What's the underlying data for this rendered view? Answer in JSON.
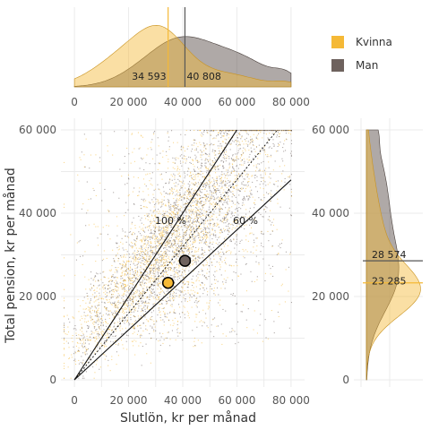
{
  "chart_data": {
    "type": "scatter",
    "xlabel": "Slutlön, kr per månad",
    "ylabel": "Total pension, kr per månad",
    "xlim": [
      -5000,
      85000
    ],
    "ylim": [
      0,
      60000
    ],
    "x_ticks": [
      0,
      20000,
      40000,
      60000,
      80000
    ],
    "y_ticks": [
      0,
      20000,
      40000,
      60000
    ],
    "x_tick_labels": [
      "0",
      "20 000",
      "40 000",
      "60 000",
      "80 000"
    ],
    "y_tick_labels": [
      "0",
      "20 000",
      "40 000",
      "60 000"
    ],
    "grid": true,
    "legend_position": "top-right",
    "series": [
      {
        "name": "Kvinna",
        "color": "#f5b936",
        "mean_x": 34593,
        "mean_y": 23285,
        "mean_x_label": "34 593",
        "mean_y_label": "23 285"
      },
      {
        "name": "Man",
        "color": "#6e625e",
        "mean_x": 40808,
        "mean_y": 28574,
        "mean_x_label": "40 808",
        "mean_y_label": "28 574"
      }
    ],
    "reference_lines": [
      {
        "label": "100 %",
        "slope": 1.0
      },
      {
        "label": "60 %",
        "slope": 0.6
      },
      {
        "label": "",
        "slope": 0.8,
        "style": "dotted"
      }
    ]
  }
}
